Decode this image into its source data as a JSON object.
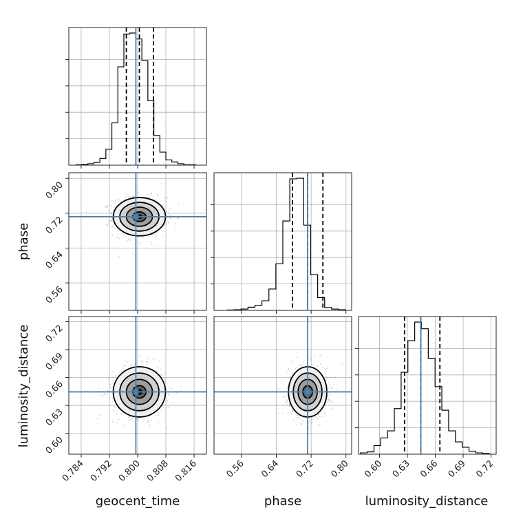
{
  "chart_data": {
    "type": "corner",
    "parameters": [
      "geocent_time",
      "phase",
      "luminosity_distance"
    ],
    "axis_labels": {
      "geocent_time": "geocent_time",
      "phase": "phase",
      "luminosity_distance": "luminosity_distance"
    },
    "ranges": {
      "geocent_time": [
        0.7805,
        0.8195
      ],
      "phase": [
        0.497,
        0.813
      ],
      "luminosity_distance": [
        0.5775,
        0.7255
      ]
    },
    "ticks": {
      "geocent_time": [
        0.784,
        0.792,
        0.8,
        0.808,
        0.816
      ],
      "phase": [
        0.56,
        0.64,
        0.72,
        0.8
      ],
      "luminosity_distance": [
        0.6,
        0.63,
        0.66,
        0.69,
        0.72
      ]
    },
    "tick_labels": {
      "geocent_time": [
        "0.784",
        "0.792",
        "0.800",
        "0.808",
        "0.816"
      ],
      "phase": [
        "0.56",
        "0.64",
        "0.72",
        "0.80"
      ],
      "luminosity_distance": [
        "0.60",
        "0.63",
        "0.66",
        "0.69",
        "0.72"
      ]
    },
    "truths": {
      "geocent_time": 0.7995,
      "phase": 0.712,
      "luminosity_distance": 0.6445
    },
    "quantiles": {
      "geocent_time": [
        0.7968,
        0.8005,
        0.8045
      ],
      "phase": [
        0.677,
        0.712,
        0.747
      ],
      "luminosity_distance": [
        0.627,
        0.6445,
        0.665
      ]
    },
    "histograms": {
      "geocent_time": {
        "edges": [
          0.7825,
          0.7842,
          0.7859,
          0.7876,
          0.7893,
          0.791,
          0.7927,
          0.7944,
          0.7961,
          0.7978,
          0.7995,
          0.8012,
          0.8029,
          0.8046,
          0.8063,
          0.808,
          0.8097,
          0.8114,
          0.8131,
          0.8148,
          0.8165
        ],
        "counts": [
          1,
          2,
          4,
          8,
          19,
          45,
          120,
          279,
          372,
          375,
          358,
          297,
          183,
          84,
          37,
          15,
          9,
          4,
          1,
          1
        ]
      },
      "phase": {
        "edges": [
          0.527,
          0.543,
          0.559,
          0.575,
          0.591,
          0.607,
          0.623,
          0.639,
          0.655,
          0.671,
          0.687,
          0.703,
          0.719,
          0.735,
          0.751,
          0.767,
          0.783,
          0.799
        ],
        "counts": [
          1,
          2,
          4,
          10,
          16,
          30,
          67,
          146,
          280,
          412,
          414,
          267,
          112,
          40,
          9,
          4,
          2
        ]
      },
      "luminosity_distance": {
        "edges": [
          0.5795,
          0.5868,
          0.5941,
          0.6014,
          0.6087,
          0.616,
          0.6233,
          0.6306,
          0.6379,
          0.6452,
          0.6525,
          0.6598,
          0.6671,
          0.6744,
          0.6817,
          0.689,
          0.6963,
          0.7036,
          0.7109,
          0.7182
        ],
        "counts": [
          4,
          7,
          26,
          49,
          70,
          137,
          246,
          341,
          397,
          377,
          288,
          203,
          132,
          70,
          37,
          21,
          9,
          4,
          2
        ]
      }
    },
    "scatter_params": {
      "geocent_time": {
        "mean": 0.8005,
        "sd": 0.0037
      },
      "phase": {
        "mean": 0.712,
        "sd": 0.022
      },
      "luminosity_distance": {
        "mean": 0.6445,
        "sd": 0.0135
      }
    },
    "contour_sigmas": [
      0.5,
      1.0,
      1.5,
      2.0
    ],
    "truth_color": "#4682b4",
    "line_color": "#000000",
    "grid": true
  }
}
